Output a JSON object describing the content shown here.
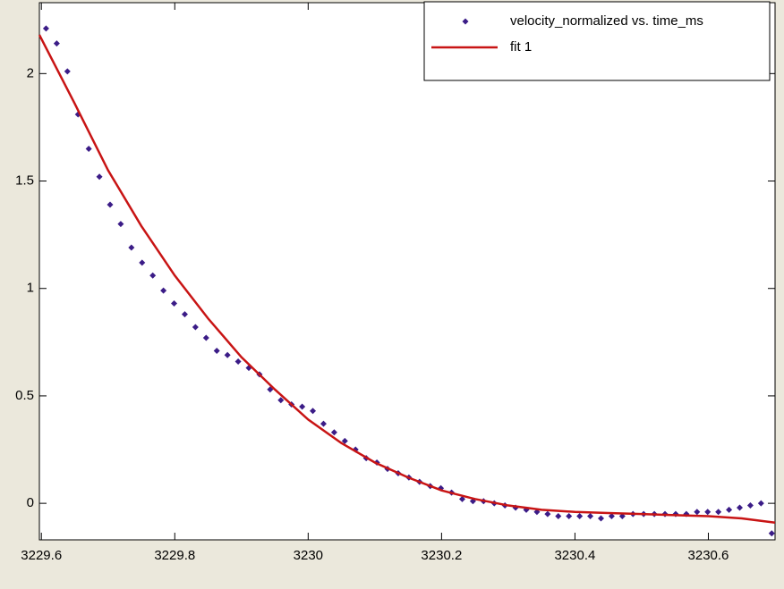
{
  "chart_data": {
    "type": "scatter",
    "xlim": [
      3229.597,
      3230.7
    ],
    "ylim": [
      -0.17,
      2.33
    ],
    "xticks": [
      3229.6,
      3229.8,
      3230,
      3230.2,
      3230.4,
      3230.6
    ],
    "yticks": [
      0,
      0.5,
      1,
      1.5,
      2
    ],
    "legend": "upper right",
    "series": [
      {
        "name": "velocity_normalized vs. time_ms",
        "color": "#3b1c87",
        "style": "markers",
        "x": [
          3229.607,
          3229.623,
          3229.639,
          3229.655,
          3229.671,
          3229.687,
          3229.703,
          3229.719,
          3229.735,
          3229.751,
          3229.767,
          3229.783,
          3229.799,
          3229.815,
          3229.831,
          3229.847,
          3229.863,
          3229.879,
          3229.895,
          3229.911,
          3229.927,
          3229.943,
          3229.959,
          3229.975,
          3229.991,
          3230.007,
          3230.023,
          3230.039,
          3230.055,
          3230.071,
          3230.087,
          3230.103,
          3230.119,
          3230.135,
          3230.151,
          3230.167,
          3230.183,
          3230.199,
          3230.215,
          3230.231,
          3230.247,
          3230.263,
          3230.279,
          3230.295,
          3230.311,
          3230.327,
          3230.343,
          3230.359,
          3230.375,
          3230.391,
          3230.407,
          3230.423,
          3230.439,
          3230.455,
          3230.471,
          3230.487,
          3230.503,
          3230.519,
          3230.535,
          3230.551,
          3230.567,
          3230.583,
          3230.599,
          3230.615,
          3230.631,
          3230.647,
          3230.663,
          3230.679,
          3230.695
        ],
        "values": [
          2.21,
          2.14,
          2.01,
          1.81,
          1.65,
          1.52,
          1.39,
          1.3,
          1.19,
          1.12,
          1.06,
          0.99,
          0.93,
          0.88,
          0.82,
          0.77,
          0.71,
          0.69,
          0.66,
          0.63,
          0.6,
          0.53,
          0.48,
          0.46,
          0.45,
          0.43,
          0.37,
          0.33,
          0.29,
          0.25,
          0.21,
          0.19,
          0.16,
          0.14,
          0.12,
          0.1,
          0.08,
          0.07,
          0.05,
          0.02,
          0.01,
          0.01,
          0,
          -0.01,
          -0.02,
          -0.03,
          -0.04,
          -0.05,
          -0.06,
          -0.06,
          -0.06,
          -0.06,
          -0.07,
          -0.06,
          -0.06,
          -0.05,
          -0.05,
          -0.05,
          -0.05,
          -0.05,
          -0.05,
          -0.04,
          -0.04,
          -0.04,
          -0.03,
          -0.02,
          -0.01,
          0,
          -0.14
        ]
      },
      {
        "name": "fit 1",
        "color": "#c81414",
        "style": "line",
        "x": [
          3229.597,
          3229.65,
          3229.7,
          3229.75,
          3229.8,
          3229.85,
          3229.9,
          3229.95,
          3230,
          3230.05,
          3230.1,
          3230.15,
          3230.2,
          3230.25,
          3230.3,
          3230.35,
          3230.4,
          3230.45,
          3230.5,
          3230.55,
          3230.6,
          3230.65,
          3230.7
        ],
        "values": [
          2.18,
          1.86,
          1.55,
          1.29,
          1.06,
          0.86,
          0.68,
          0.53,
          0.39,
          0.28,
          0.19,
          0.12,
          0.06,
          0.02,
          -0.01,
          -0.03,
          -0.04,
          -0.045,
          -0.05,
          -0.055,
          -0.06,
          -0.07,
          -0.09
        ]
      }
    ]
  }
}
